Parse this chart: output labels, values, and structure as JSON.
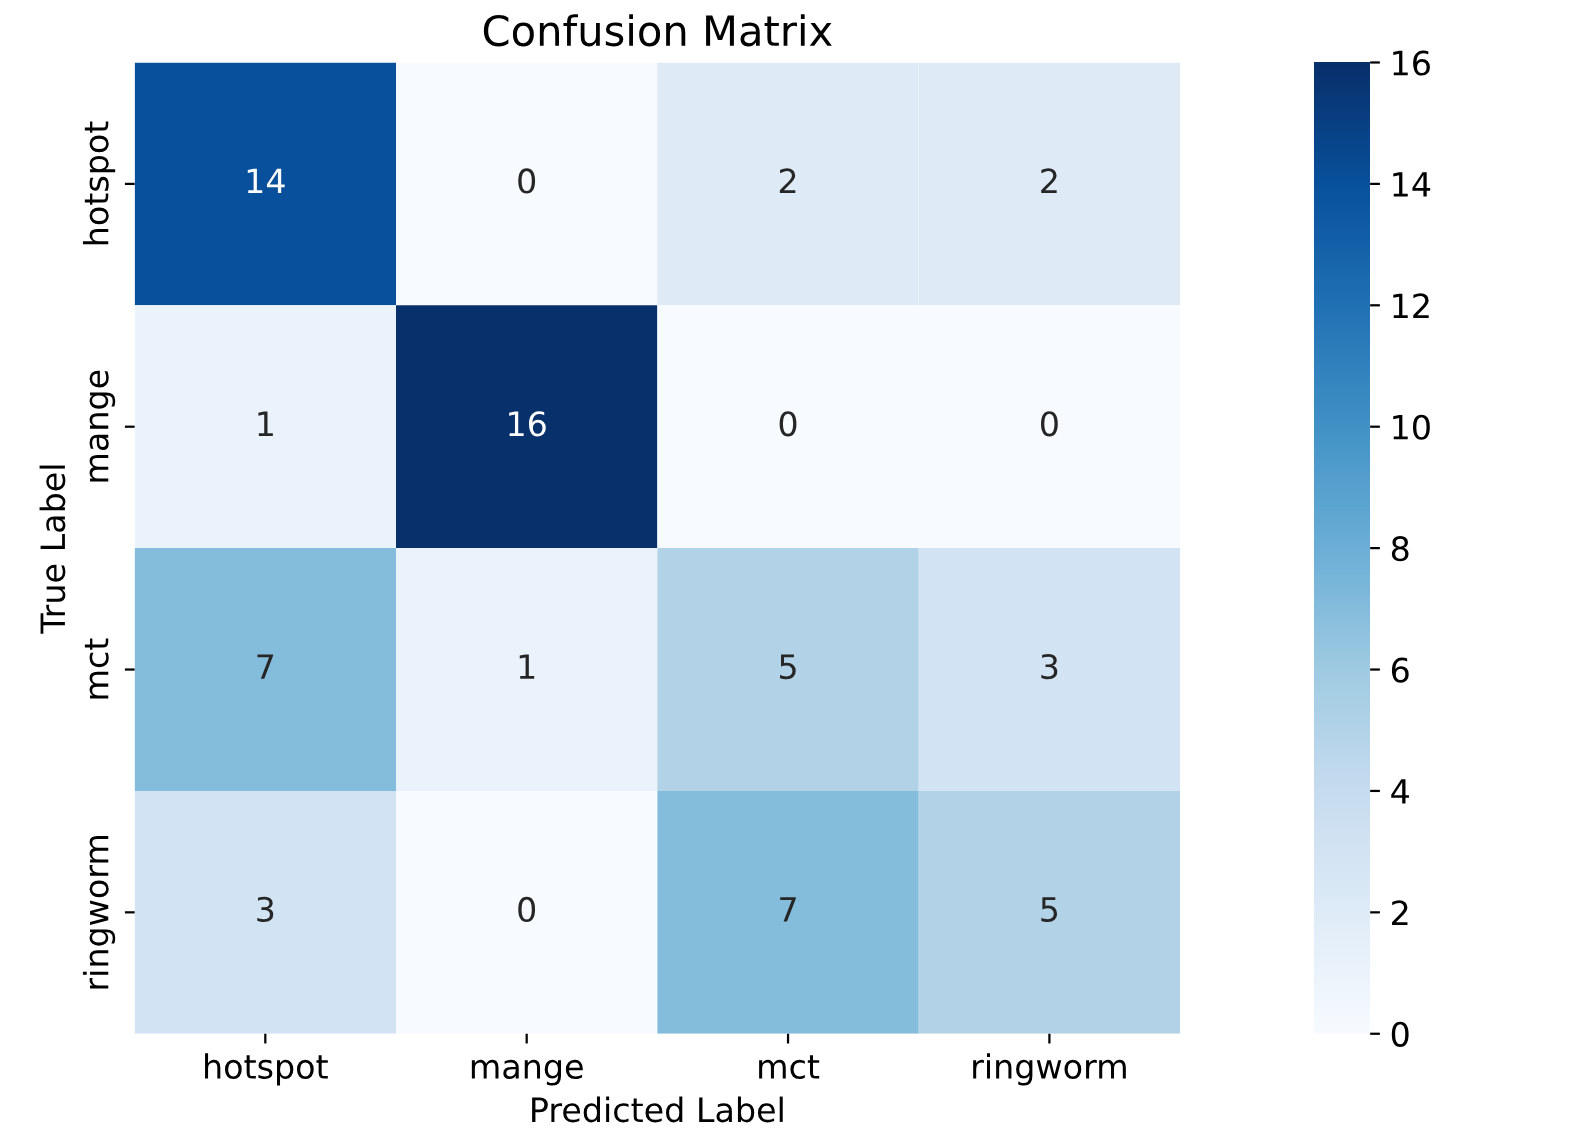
{
  "chart_data": {
    "type": "heatmap",
    "title": "Confusion Matrix",
    "xlabel": "Predicted Label",
    "ylabel": "True Label",
    "categories": [
      "hotspot",
      "mange",
      "mct",
      "ringworm"
    ],
    "y_categories": [
      "hotspot",
      "mange",
      "mct",
      "ringworm"
    ],
    "cells": [
      [
        14,
        0,
        2,
        2
      ],
      [
        1,
        16,
        0,
        0
      ],
      [
        7,
        1,
        5,
        3
      ],
      [
        3,
        0,
        7,
        5
      ]
    ],
    "clim": [
      0,
      16
    ],
    "cticks": [
      0,
      2,
      4,
      6,
      8,
      10,
      12,
      14,
      16
    ],
    "data_labels": true
  }
}
